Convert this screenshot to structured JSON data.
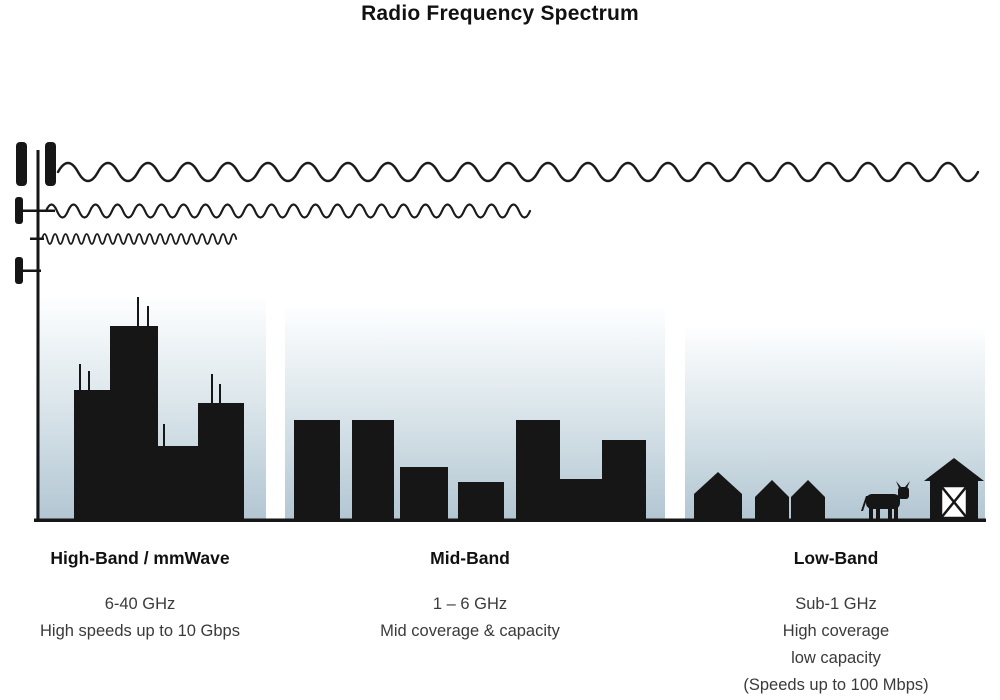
{
  "title": "Radio Frequency Spectrum",
  "bands": [
    {
      "name": "High-Band / mmWave",
      "frequency": "6-40 GHz",
      "lines": [
        "High speeds up to 10 Gbps"
      ]
    },
    {
      "name": "Mid-Band",
      "frequency": "1 – 6 GHz",
      "lines": [
        "Mid coverage & capacity"
      ]
    },
    {
      "name": "Low-Band",
      "frequency": "Sub-1 GHz",
      "lines": [
        "High coverage",
        "low capacity",
        "(Speeds up to 100 Mbps)"
      ]
    }
  ],
  "colors": {
    "silhouette": "#161616",
    "wave": "#1b1b1b",
    "sky_top": "#fdfeff",
    "sky_mid": "#dde7ec",
    "sky_bottom": "#b2c6d2",
    "heading_text": "#111111",
    "body_text": "#3a3a3a"
  }
}
